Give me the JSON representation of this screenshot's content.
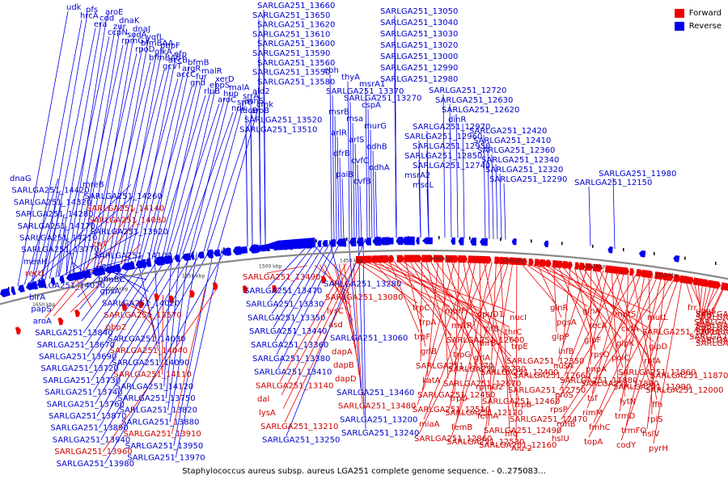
{
  "caption": "Staphylococcus aureus subsp. aureus LGA251 complete genome sequence. - 0..275083...",
  "legend": [
    {
      "label": "Forward",
      "color": "#ee0000"
    },
    {
      "label": "Reverse",
      "color": "#0000ee"
    }
  ],
  "scale_labels": [
    "1650 kbp",
    "1600 kbp",
    "1550 kbp",
    "1500 kbp",
    "1450 kbp",
    "1400 kbp",
    "1350 kbp",
    "1300 kbp",
    "1250 kbp"
  ],
  "colors": {
    "forward": "#ee0000",
    "reverse": "#0000ee",
    "backbone": "#888888",
    "text_reverse": "#0000cc",
    "text_forward": "#cc0000"
  },
  "reverse_top_labels": [
    "udk",
    "pfs",
    "aroE",
    "hrcA",
    "cdd",
    "dnaK",
    "era",
    "zur",
    "dnaJ",
    "ccpN",
    "sodA",
    "yqfL",
    "rpmG1",
    "bfmBAA",
    "pbpF",
    "rpoD",
    "glkA",
    "efp",
    "bfmBAB",
    "accB",
    "bfmB",
    "gcvT",
    "argR",
    "malR",
    "accC",
    "fur",
    "xerD",
    "gnd",
    "ebpS",
    "malA",
    "rluB",
    "hup",
    "srrA",
    "aroC",
    "srrB",
    "cmk",
    "ndk",
    "aroB"
  ],
  "reverse_middle_labels": [
    "SARLGA251_13660",
    "SARLGA251_13650",
    "SARLGA251_13620",
    "SARLGA251_13610",
    "SARLGA251_13600",
    "SARLGA251_13590",
    "SARLGA251_13560",
    "SARLGA251_13550",
    "SARLGA251_13580",
    "ald2",
    "asnS",
    "tdcB",
    "SARLGA251_13520",
    "SARLGA251_13510",
    "ebh",
    "thyA",
    "msrA1",
    "SARLGA251_13370",
    "SARLGA251_13270",
    "cspA",
    "msrB",
    "msa",
    "murG",
    "arlR",
    "arlS",
    "odhB",
    "dfrB",
    "cvfC",
    "odhA",
    "paiB",
    "cvfB"
  ],
  "reverse_right_labels": [
    "SARLGA251_13050",
    "SARLGA251_13040",
    "SARLGA251_13030",
    "SARLGA251_13020",
    "SARLGA251_13000",
    "SARLGA251_12990",
    "SARLGA251_12980",
    "SARLGA251_12720",
    "SARLGA251_12630",
    "SARLGA251_12620",
    "dinR",
    "SARLGA251_12970",
    "SARLGA251_12960",
    "SARLGA251_12950",
    "SARLGA251_12850",
    "SARLGA251_12740",
    "msrA2",
    "mscL",
    "SARLGA251_12420",
    "SARLGA251_12410",
    "SARLGA251_12360",
    "SARLGA251_12340",
    "SARLGA251_12320",
    "SARLGA251_12290",
    "SARLGA251_11980",
    "SARLGA251_12150"
  ],
  "left_labels": [
    {
      "text": "dnaG",
      "color": "blue"
    },
    {
      "text": "mreB",
      "color": "blue"
    },
    {
      "text": "SARLGA251_14420",
      "color": "blue"
    },
    {
      "text": "SARLGA251_14260",
      "color": "blue"
    },
    {
      "text": "SARLGA251_14320",
      "color": "blue"
    },
    {
      "text": "SARLGA251_14140",
      "color": "red"
    },
    {
      "text": "SARLGA251_14280",
      "color": "blue"
    },
    {
      "text": "SARLGA251_14080",
      "color": "red"
    },
    {
      "text": "SARLGA251_14170",
      "color": "blue"
    },
    {
      "text": "SARLGA251_13920",
      "color": "blue"
    },
    {
      "text": "SARLGA251_14210",
      "color": "blue"
    },
    {
      "text": "zwf",
      "color": "red"
    },
    {
      "text": "SARLGA251_13770",
      "color": "blue"
    },
    {
      "text": "SARLGA251_14100",
      "color": "blue"
    },
    {
      "text": "menH",
      "color": "blue"
    },
    {
      "text": "pflB",
      "color": "blue"
    },
    {
      "text": "recU",
      "color": "red"
    },
    {
      "text": "bfmBC",
      "color": "blue"
    },
    {
      "text": "SARLGA251_14070",
      "color": "blue"
    },
    {
      "text": "gpsA",
      "color": "blue"
    },
    {
      "text": "birA",
      "color": "blue"
    },
    {
      "text": "SARLGA251_14020",
      "color": "blue"
    },
    {
      "text": "papS",
      "color": "blue"
    },
    {
      "text": "SARLGA251_13570",
      "color": "red"
    },
    {
      "text": "aroA",
      "color": "blue"
    },
    {
      "text": "pbp2",
      "color": "red"
    },
    {
      "text": "SARLGA251_13840",
      "color": "blue"
    },
    {
      "text": "SARLGA251_14030",
      "color": "blue"
    },
    {
      "text": "SARLGA251_13670",
      "color": "blue"
    },
    {
      "text": "SARLGA251_14040",
      "color": "red"
    },
    {
      "text": "SARLGA251_13690",
      "color": "blue"
    },
    {
      "text": "SARLGA251_14090",
      "color": "blue"
    },
    {
      "text": "SARLGA251_13720",
      "color": "blue"
    },
    {
      "text": "SARLGA251_14110",
      "color": "red"
    },
    {
      "text": "SARLGA251_13730",
      "color": "blue"
    },
    {
      "text": "SARLGA251_14120",
      "color": "blue"
    },
    {
      "text": "SARLGA251_13740",
      "color": "blue"
    },
    {
      "text": "SARLGA251_13750",
      "color": "blue"
    },
    {
      "text": "SARLGA251_13760",
      "color": "blue"
    },
    {
      "text": "SARLGA251_13820",
      "color": "blue"
    },
    {
      "text": "SARLGA251_13870",
      "color": "blue"
    },
    {
      "text": "SARLGA251_13880",
      "color": "blue"
    },
    {
      "text": "SARLGA251_13890",
      "color": "blue"
    },
    {
      "text": "SARLGA251_13910",
      "color": "red"
    },
    {
      "text": "SARLGA251_13940",
      "color": "blue"
    },
    {
      "text": "SARLGA251_13950",
      "color": "blue"
    },
    {
      "text": "SARLGA251_13960",
      "color": "red"
    },
    {
      "text": "SARLGA251_13970",
      "color": "blue"
    },
    {
      "text": "SARLGA251_13980",
      "color": "blue"
    }
  ],
  "center_labels": [
    {
      "text": "SARLGA251_13490",
      "color": "red"
    },
    {
      "text": "SARLGA251_13280",
      "color": "blue"
    },
    {
      "text": "SARLGA251_13470",
      "color": "blue"
    },
    {
      "text": "SARLGA251_13080",
      "color": "red"
    },
    {
      "text": "SARLGA251_13330",
      "color": "blue"
    },
    {
      "text": "lysC",
      "color": "red"
    },
    {
      "text": "SARLGA251_13350",
      "color": "blue"
    },
    {
      "text": "asd",
      "color": "red"
    },
    {
      "text": "SARLGA251_13440",
      "color": "blue"
    },
    {
      "text": "SARLGA251_13060",
      "color": "blue"
    },
    {
      "text": "SARLGA251_13360",
      "color": "blue"
    },
    {
      "text": "dapA",
      "color": "red"
    },
    {
      "text": "SARLGA251_13380",
      "color": "blue"
    },
    {
      "text": "dapB",
      "color": "red"
    },
    {
      "text": "SARLGA251_13410",
      "color": "blue"
    },
    {
      "text": "dapD",
      "color": "red"
    },
    {
      "text": "SARLGA251_13140",
      "color": "red"
    },
    {
      "text": "SARLGA251_13460",
      "color": "blue"
    },
    {
      "text": "dal",
      "color": "red"
    },
    {
      "text": "SARLGA251_13480",
      "color": "red"
    },
    {
      "text": "lysA",
      "color": "red"
    },
    {
      "text": "SARLGA251_13200",
      "color": "blue"
    },
    {
      "text": "SARLGA251_13210",
      "color": "red"
    },
    {
      "text": "SARLGA251_13240",
      "color": "blue"
    },
    {
      "text": "SARLGA251_13250",
      "color": "blue"
    }
  ],
  "forward_labels": [
    "trpC",
    "mprF",
    "opuD1",
    "nucI",
    "trpA",
    "msrR",
    "citB",
    "thrC",
    "trpF",
    "SARLGA251_12600",
    "thrB",
    "trpE",
    "grlB",
    "trpG",
    "grlA",
    "SARLGA251_12350",
    "SARLGA251_12370",
    "SARLGA251_12730",
    "SARLGA251_12400",
    "SARLGA251_12660",
    "katA",
    "SARLGA251_12670",
    "rpmG2",
    "SARLGA251_12750",
    "SARLGA251_12450",
    "trpD",
    "SARLGA251_12460",
    "trpB",
    "SARLGA251_12510",
    "SARLGA251_12120",
    "femA",
    "SARLGA251_12470",
    "miaA",
    "femB",
    "SARLGA251_12490",
    "hfq",
    "SARLGA251_12860",
    "SARLGA251_12530",
    "SARLGA251_12160",
    "Alu-2",
    "glnR",
    "glnA",
    "mutS",
    "mutL",
    "pgsA",
    "recA",
    "cvfA",
    "SARLGA251_12010",
    "glpP",
    "glpF",
    "glpK",
    "glpD",
    "infB",
    "rpsO",
    "polC",
    "rbfA",
    "nusA",
    "pnpA",
    "SARLGA251_11860",
    "SARLGA251_11870",
    "SARLGA251_11880",
    "SARLGA251_11890",
    "SARLGA251_11990",
    "SARLGA251_12000",
    "proS",
    "tsf",
    "lytN",
    "ffh",
    "rpsP",
    "rimM",
    "trmD",
    "rplS",
    "rnhB",
    "fmhC",
    "trmFO",
    "hslV",
    "hslU",
    "topA",
    "codY",
    "pyrH",
    "frr",
    "uppS",
    "SARLGA251_11720",
    "SARLGA251_11730",
    "SARLGA251_11760",
    "SARLGA251_11770",
    "SARLGA251_11780",
    "SARLGA251_11790",
    "SARLGA251_11820",
    "SARLGA251_11830",
    "SARLGA251_11900"
  ]
}
